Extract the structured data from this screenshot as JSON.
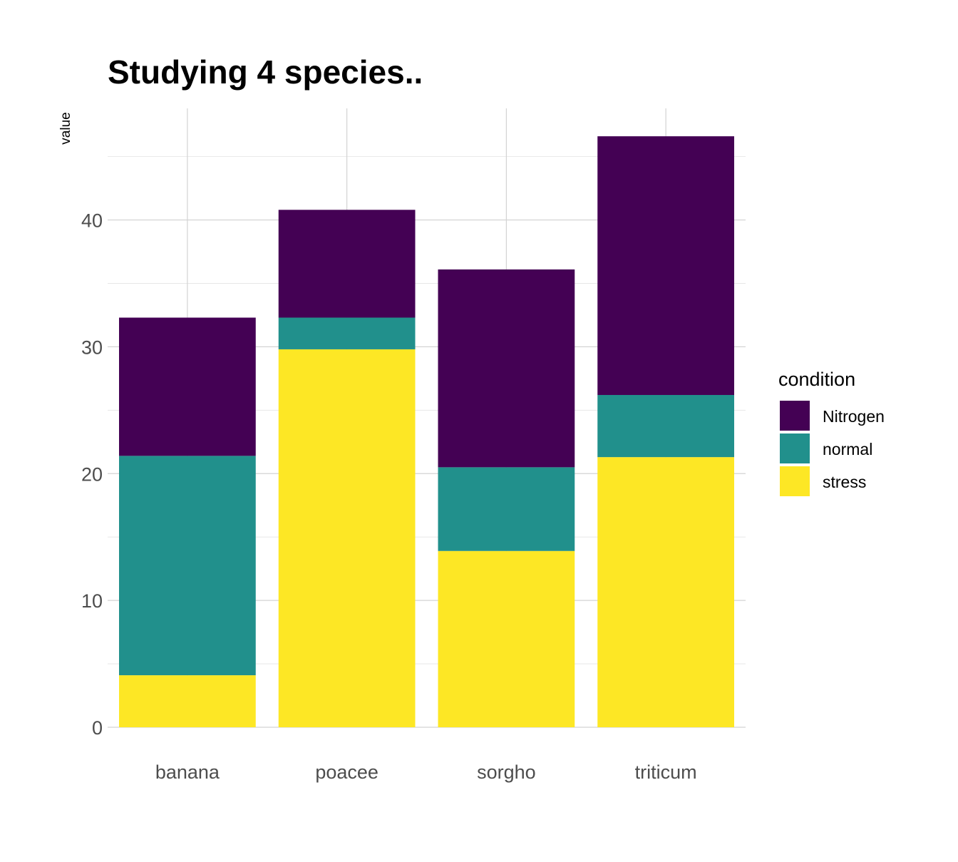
{
  "chart_data": {
    "type": "bar",
    "stacked": true,
    "title": "Studying 4 species..",
    "xlabel": "",
    "ylabel": "value",
    "categories": [
      "banana",
      "poacee",
      "sorgho",
      "triticum"
    ],
    "series": [
      {
        "name": "stress",
        "color": "#FDE725",
        "values": [
          4.1,
          29.8,
          13.9,
          21.3
        ]
      },
      {
        "name": "normal",
        "color": "#21908C",
        "values": [
          17.3,
          2.5,
          6.6,
          4.9
        ]
      },
      {
        "name": "Nitrogen",
        "color": "#440154",
        "values": [
          10.9,
          8.5,
          15.6,
          20.4
        ]
      }
    ],
    "ylim": [
      0,
      48.8
    ],
    "yticks": [
      0,
      10,
      20,
      30,
      40
    ],
    "grid": true,
    "legend": {
      "title": "condition",
      "position": "right",
      "entries": [
        "Nitrogen",
        "normal",
        "stress"
      ]
    }
  }
}
